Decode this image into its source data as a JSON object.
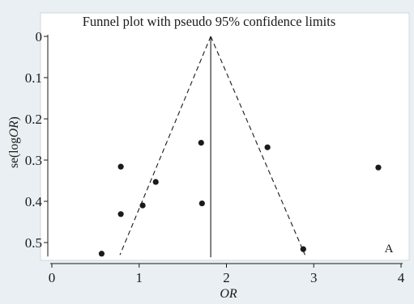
{
  "chart_data": {
    "type": "scatter",
    "title": "Funnel plot with pseudo 95% confidence limits",
    "xlabel": "OR",
    "ylabel_prefix": "se(log",
    "ylabel_italic": "OR",
    "ylabel_suffix": ")",
    "panel_label": "A",
    "xlim": [
      0,
      4
    ],
    "ylim": [
      0,
      0.53
    ],
    "y_inverted": true,
    "grid": false,
    "x_ticks": [
      0,
      1,
      2,
      3,
      4
    ],
    "x_tick_labels": [
      "0",
      "1",
      "2",
      "3",
      "4"
    ],
    "y_ticks": [
      0,
      0.1,
      0.2,
      0.3,
      0.4,
      0.5
    ],
    "y_tick_labels": [
      "0",
      "0.1",
      "0.2",
      "0.3",
      "0.4",
      "0.5"
    ],
    "pooled_estimate": 1.82,
    "confidence_limits": {
      "apex": [
        1.82,
        0
      ],
      "lower_bound_end": [
        0.78,
        0.53
      ],
      "upper_bound_end": [
        2.9,
        0.53
      ]
    },
    "points": [
      {
        "x": 0.57,
        "y": 0.527
      },
      {
        "x": 0.79,
        "y": 0.316
      },
      {
        "x": 0.79,
        "y": 0.431
      },
      {
        "x": 1.04,
        "y": 0.41
      },
      {
        "x": 1.19,
        "y": 0.353
      },
      {
        "x": 1.71,
        "y": 0.258
      },
      {
        "x": 1.72,
        "y": 0.405
      },
      {
        "x": 2.47,
        "y": 0.269
      },
      {
        "x": 2.88,
        "y": 0.516
      },
      {
        "x": 3.74,
        "y": 0.318
      }
    ],
    "colors": {
      "background": "#e9eff2",
      "plot_area": "#ffffff",
      "ink": "#1a1a1a"
    }
  }
}
